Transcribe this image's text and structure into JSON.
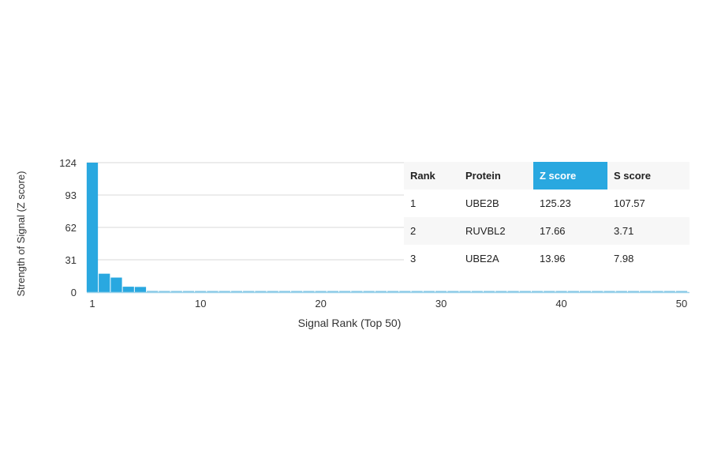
{
  "chart_data": {
    "type": "bar",
    "title": "",
    "xlabel": "Signal Rank (Top 50)",
    "ylabel": "Strength of Signal (Z score)",
    "ylim": [
      0,
      124
    ],
    "yticks": [
      0,
      31,
      62,
      93,
      124
    ],
    "xticks": [
      1,
      10,
      20,
      30,
      40,
      50
    ],
    "grid": true,
    "bar_color": "#29a8e0",
    "categories": [
      1,
      2,
      3,
      4,
      5,
      6,
      7,
      8,
      9,
      10,
      11,
      12,
      13,
      14,
      15,
      16,
      17,
      18,
      19,
      20,
      21,
      22,
      23,
      24,
      25,
      26,
      27,
      28,
      29,
      30,
      31,
      32,
      33,
      34,
      35,
      36,
      37,
      38,
      39,
      40,
      41,
      42,
      43,
      44,
      45,
      46,
      47,
      48,
      49,
      50
    ],
    "values": [
      125.23,
      17.66,
      13.96,
      5.2,
      5.0,
      1.2,
      1.1,
      1.0,
      0.9,
      0.8,
      0.7,
      0.7,
      0.6,
      0.6,
      0.6,
      0.5,
      0.5,
      0.5,
      0.5,
      0.5,
      0.4,
      0.4,
      0.4,
      0.4,
      0.4,
      0.4,
      0.4,
      0.4,
      0.4,
      0.4,
      0.3,
      0.3,
      0.3,
      0.3,
      0.3,
      0.3,
      0.3,
      0.3,
      0.3,
      0.3,
      0.3,
      0.3,
      0.3,
      0.3,
      0.3,
      0.3,
      0.3,
      0.3,
      0.3,
      0.3
    ]
  },
  "table": {
    "headers": [
      "Rank",
      "Protein",
      "Z score",
      "S score"
    ],
    "highlight_header": "Z score",
    "highlight_color": "#29a8e0",
    "rows": [
      [
        "1",
        "UBE2B",
        "125.23",
        "107.57"
      ],
      [
        "2",
        "RUVBL2",
        "17.66",
        "3.71"
      ],
      [
        "3",
        "UBE2A",
        "13.96",
        "7.98"
      ]
    ]
  }
}
